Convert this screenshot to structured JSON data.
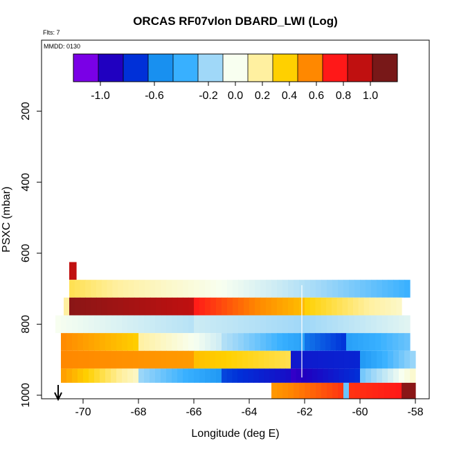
{
  "chart_data": {
    "type": "heatmap",
    "title": "ORCAS RF07vlon DBARD_LWI (Log)",
    "flights_label": "Flts: 7",
    "date_label": "MMDD: 0130",
    "xlabel": "Longitude (deg E)",
    "ylabel": "PSXC (mbar)",
    "xlim": [
      -71.5,
      -57.5
    ],
    "ylim": [
      1010,
      0
    ],
    "x_ticks": [
      -70,
      -68,
      -66,
      -64,
      -62,
      -60,
      -58
    ],
    "x_tick_labels": [
      "-70",
      "-68",
      "-66",
      "-64",
      "-62",
      "-60",
      "-58"
    ],
    "y_ticks": [
      200,
      400,
      600,
      800,
      1000
    ],
    "y_tick_labels": [
      "200",
      "400",
      "600",
      "800",
      "1000"
    ],
    "colorbar": {
      "min": -1.2,
      "max": 1.2,
      "colors": [
        "#7a00e6",
        "#2000c0",
        "#0030d8",
        "#1890f0",
        "#38b0ff",
        "#a0d8f8",
        "#f8fff0",
        "#fff0a0",
        "#ffd000",
        "#ff8800",
        "#ff1818",
        "#c01010",
        "#781818"
      ],
      "ticks": [
        -1.0,
        -0.6,
        -0.2,
        0.0,
        0.2,
        0.4,
        0.6,
        0.8,
        1.0
      ],
      "tick_labels": [
        "-1.0",
        "-0.6",
        "-0.2",
        "0.0",
        "0.2",
        "0.4",
        "0.6",
        "0.8",
        "1.0"
      ]
    },
    "bands": [
      {
        "p_top": 625,
        "p_bot": 675,
        "segments": [
          {
            "x0": -70.5,
            "x1": -70.25,
            "v0": 1.0,
            "v1": 1.0
          }
        ]
      },
      {
        "p_top": 675,
        "p_bot": 725,
        "segments": [
          {
            "x0": -70.5,
            "x1": -67.0,
            "v0": 0.3,
            "v1": 0.1
          },
          {
            "x0": -67.0,
            "x1": -63.0,
            "v0": 0.1,
            "v1": -0.1
          },
          {
            "x0": -63.0,
            "x1": -58.2,
            "v0": -0.1,
            "v1": -0.4
          }
        ]
      },
      {
        "p_top": 725,
        "p_bot": 775,
        "segments": [
          {
            "x0": -70.7,
            "x1": -70.5,
            "v0": 0.2,
            "v1": 0.2
          },
          {
            "x0": -70.5,
            "x1": -66.0,
            "v0": 1.15,
            "v1": 1.0
          },
          {
            "x0": -66.0,
            "x1": -62.0,
            "v0": 0.8,
            "v1": 0.45
          },
          {
            "x0": -62.0,
            "x1": -58.5,
            "v0": 0.4,
            "v1": 0.1
          }
        ]
      },
      {
        "p_top": 775,
        "p_bot": 825,
        "segments": [
          {
            "x0": -71.0,
            "x1": -66.0,
            "v0": 0.0,
            "v1": -0.15
          },
          {
            "x0": -66.0,
            "x1": -62.0,
            "v0": -0.1,
            "v1": -0.2
          },
          {
            "x0": -62.0,
            "x1": -58.2,
            "v0": -0.2,
            "v1": -0.05
          }
        ]
      },
      {
        "p_top": 825,
        "p_bot": 875,
        "segments": [
          {
            "x0": -70.8,
            "x1": -68.0,
            "v0": 0.6,
            "v1": 0.4
          },
          {
            "x0": -68.0,
            "x1": -65.0,
            "v0": 0.2,
            "v1": -0.1
          },
          {
            "x0": -65.0,
            "x1": -62.0,
            "v0": -0.15,
            "v1": -0.5
          },
          {
            "x0": -62.0,
            "x1": -60.5,
            "v0": -0.65,
            "v1": -0.8
          },
          {
            "x0": -60.5,
            "x1": -58.2,
            "v0": -0.5,
            "v1": -0.3
          }
        ]
      },
      {
        "p_top": 875,
        "p_bot": 925,
        "segments": [
          {
            "x0": -70.8,
            "x1": -66.0,
            "v0": 0.6,
            "v1": 0.55
          },
          {
            "x0": -66.0,
            "x1": -62.5,
            "v0": 0.45,
            "v1": 0.3
          },
          {
            "x0": -62.5,
            "x1": -60.0,
            "v0": -0.9,
            "v1": -0.85
          },
          {
            "x0": -60.0,
            "x1": -58.0,
            "v0": -0.55,
            "v1": -0.2
          }
        ]
      },
      {
        "p_top": 925,
        "p_bot": 965,
        "segments": [
          {
            "x0": -70.8,
            "x1": -68.0,
            "v0": 0.55,
            "v1": 0.1
          },
          {
            "x0": -68.0,
            "x1": -65.0,
            "v0": -0.2,
            "v1": -0.55
          },
          {
            "x0": -65.0,
            "x1": -62.5,
            "v0": -0.75,
            "v1": -0.95
          },
          {
            "x0": -62.5,
            "x1": -60.0,
            "v0": -1.05,
            "v1": -0.8
          },
          {
            "x0": -60.0,
            "x1": -58.0,
            "v0": -0.3,
            "v1": 0.1
          }
        ]
      },
      {
        "p_top": 965,
        "p_bot": 1010,
        "segments": [
          {
            "x0": -63.2,
            "x1": -60.6,
            "v0": 0.55,
            "v1": 0.75
          },
          {
            "x0": -60.6,
            "x1": -60.4,
            "v0": -0.3,
            "v1": -0.3
          },
          {
            "x0": -60.4,
            "x1": -58.5,
            "v0": 0.75,
            "v1": 0.8
          },
          {
            "x0": -58.5,
            "x1": -58.0,
            "v0": 1.15,
            "v1": 1.15
          }
        ]
      }
    ],
    "vertical_line_lon": -62.1,
    "arrow_lon": -70.9
  }
}
